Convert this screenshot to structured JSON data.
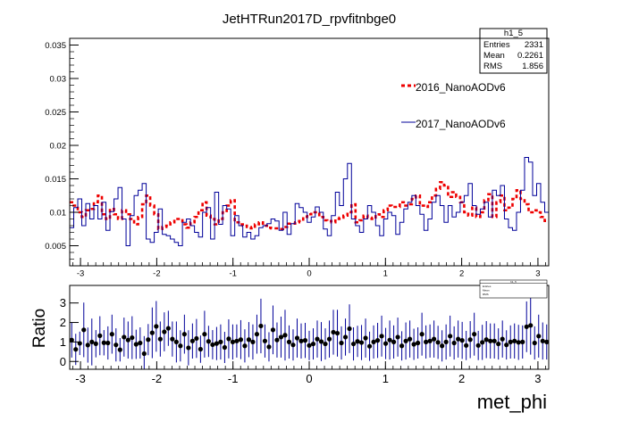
{
  "colors": {
    "series_2016": "#ee0000",
    "series_2017": "#000099",
    "ratio_err": "#000099",
    "axis": "#000000"
  },
  "chart_data": [
    {
      "type": "histogram",
      "title": "JetHTRun2017D_rpvfitnbge0",
      "xlabel": "",
      "ylabel": "",
      "xlim": [
        -3.14159,
        3.14159
      ],
      "ylim": [
        0.002,
        0.036
      ],
      "x_ticks": [
        -3,
        -2,
        -1,
        0,
        1,
        2,
        3
      ],
      "x_tick_labels": [
        "-3",
        "-2",
        "-1",
        "0",
        "1",
        "2",
        "3"
      ],
      "y_ticks": [
        0.005,
        0.01,
        0.015,
        0.02,
        0.025,
        0.03,
        0.035
      ],
      "y_tick_labels": [
        "0.005",
        "0.01",
        "0.015",
        "0.02",
        "0.025",
        "0.03",
        "0.035"
      ],
      "grid": false,
      "legend_position": "right",
      "stats_box": {
        "title": "h1_5",
        "rows": [
          {
            "label": "Entries",
            "value": "2331"
          },
          {
            "label": "Mean",
            "value": "0.2261"
          },
          {
            "label": "RMS",
            "value": "1.856"
          }
        ]
      },
      "series": [
        {
          "name": "2016_NanoAODv6",
          "style": "dashed",
          "values": [
            0.0115,
            0.011,
            0.01,
            0.0093,
            0.0103,
            0.0105,
            0.0115,
            0.0125,
            0.0097,
            0.009,
            0.0105,
            0.0097,
            0.009,
            0.0103,
            0.0097,
            0.009,
            0.0082,
            0.0093,
            0.0112,
            0.0125,
            0.011,
            0.0097,
            0.0075,
            0.0078,
            0.008,
            0.0085,
            0.009,
            0.009,
            0.0082,
            0.0077,
            0.0085,
            0.0093,
            0.0103,
            0.0115,
            0.0095,
            0.009,
            0.0082,
            0.009,
            0.01,
            0.011,
            0.0118,
            0.0085,
            0.0082,
            0.008,
            0.0078,
            0.0076,
            0.0082,
            0.0085,
            0.008,
            0.0077,
            0.0076,
            0.0076,
            0.0075,
            0.0078,
            0.0083,
            0.0083,
            0.0085,
            0.0087,
            0.0093,
            0.0097,
            0.01,
            0.01,
            0.0093,
            0.0088,
            0.0087,
            0.0085,
            0.009,
            0.0092,
            0.0095,
            0.01,
            0.0112,
            0.0085,
            0.0088,
            0.0095,
            0.0092,
            0.009,
            0.0097,
            0.0093,
            0.0103,
            0.011,
            0.0108,
            0.0108,
            0.0115,
            0.011,
            0.0112,
            0.012,
            0.0125,
            0.011,
            0.0108,
            0.0115,
            0.0125,
            0.0135,
            0.0145,
            0.014,
            0.0123,
            0.013,
            0.0123,
            0.0115,
            0.01,
            0.0095,
            0.0107,
            0.0093,
            0.01,
            0.0118,
            0.0127,
            0.0093,
            0.0115,
            0.0125,
            0.0103,
            0.0107,
            0.012,
            0.0133,
            0.012,
            0.0112,
            0.01,
            0.0103,
            0.01,
            0.0093,
            0.0087
          ]
        },
        {
          "name": "2017_NanoAODv6",
          "style": "solid",
          "values": [
            0.0077,
            0.0107,
            0.012,
            0.008,
            0.0113,
            0.009,
            0.011,
            0.009,
            0.0115,
            0.0073,
            0.0101,
            0.012,
            0.0137,
            0.009,
            0.005,
            0.0095,
            0.0125,
            0.0133,
            0.0143,
            0.006,
            0.0055,
            0.007,
            0.0105,
            0.0067,
            0.0065,
            0.006,
            0.0055,
            0.005,
            0.0085,
            0.009,
            0.008,
            0.007,
            0.0063,
            0.01,
            0.0107,
            0.006,
            0.013,
            0.0082,
            0.011,
            0.0105,
            0.0065,
            0.0095,
            0.008,
            0.0063,
            0.007,
            0.006,
            0.0065,
            0.0077,
            0.008,
            0.0083,
            0.009,
            0.0087,
            0.0073,
            0.01,
            0.0067,
            0.0083,
            0.0113,
            0.0107,
            0.01,
            0.0085,
            0.0093,
            0.0108,
            0.01,
            0.0075,
            0.0065,
            0.0095,
            0.013,
            0.011,
            0.015,
            0.0173,
            0.009,
            0.008,
            0.007,
            0.009,
            0.011,
            0.01,
            0.008,
            0.0065,
            0.009,
            0.01,
            0.0095,
            0.0067,
            0.0085,
            0.0105,
            0.0115,
            0.0125,
            0.011,
            0.0097,
            0.0073,
            0.009,
            0.0115,
            0.0125,
            0.011,
            0.0085,
            0.011,
            0.0093,
            0.01,
            0.0115,
            0.0125,
            0.0143,
            0.011,
            0.0097,
            0.0105,
            0.0115,
            0.0093,
            0.0133,
            0.0125,
            0.014,
            0.009,
            0.0077,
            0.0073,
            0.01,
            0.0133,
            0.0182,
            0.0175,
            0.0125,
            0.0143,
            0.0115,
            0.01
          ]
        }
      ]
    },
    {
      "type": "scatter",
      "title": "",
      "xlabel": "met_phi",
      "ylabel": "Ratio",
      "xlim": [
        -3.14159,
        3.14159
      ],
      "ylim": [
        -0.4,
        3.9
      ],
      "x_ticks": [
        -3,
        -2,
        -1,
        0,
        1,
        2,
        3
      ],
      "x_tick_labels": [
        "-3",
        "-2",
        "-1",
        "0",
        "1",
        "2",
        "3"
      ],
      "y_ticks": [
        0,
        1,
        2,
        3
      ],
      "y_tick_labels": [
        "0",
        "1",
        "2",
        "3"
      ],
      "grid": false,
      "stats_box": {
        "title": "h1_5",
        "rows": [
          {
            "label": "Entries",
            "value": ""
          },
          {
            "label": "Mean",
            "value": ""
          },
          {
            "label": "RMS",
            "value": ""
          }
        ]
      },
      "ratio": [
        1.1,
        0.62,
        0.93,
        1.62,
        0.84,
        1.0,
        0.91,
        1.32,
        0.96,
        0.95,
        1.4,
        0.85,
        0.6,
        1.25,
        1.1,
        1.22,
        0.88,
        0.95,
        0.4,
        1.12,
        1.47,
        1.8,
        1.15,
        1.52,
        1.7,
        1.15,
        1.0,
        0.8,
        1.4,
        0.7,
        1.05,
        1.18,
        0.63,
        1.4,
        1.03,
        0.86,
        0.92,
        1.0,
        0.72,
        1.16,
        1.0,
        1.05,
        1.12,
        0.8,
        1.12,
        1.0,
        1.4,
        1.82,
        1.05,
        0.75,
        1.62,
        1.1,
        1.25,
        1.35,
        1.0,
        0.85,
        1.2,
        1.05,
        1.08,
        0.82,
        0.9,
        1.15,
        1.02,
        0.9,
        1.15,
        1.5,
        1.45,
        0.95,
        1.25,
        1.68,
        0.9,
        1.03,
        0.97,
        1.2,
        0.78,
        1.0,
        1.08,
        1.3,
        0.92,
        1.1,
        1.0,
        1.25,
        0.8,
        1.05,
        1.15,
        0.88,
        0.95,
        1.4,
        1.0,
        1.05,
        1.15,
        0.98,
        0.8,
        1.0,
        1.3,
        0.95,
        1.15,
        1.08,
        0.82,
        1.12,
        1.4,
        0.82,
        0.98,
        1.12,
        1.05,
        1.05,
        0.9,
        1.15,
        0.85,
        1.0,
        1.05,
        0.98,
        1.0,
        1.78,
        1.85,
        0.95,
        1.3,
        1.05,
        1.0
      ],
      "error": [
        0.9,
        0.8,
        0.6,
        1.4,
        0.9,
        1.2,
        0.7,
        1.0,
        0.65,
        0.85,
        1.0,
        0.85,
        0.6,
        1.0,
        0.95,
        1.1,
        0.75,
        0.8,
        0.9,
        0.8,
        1.3,
        1.3,
        0.9,
        1.0,
        0.9,
        0.9,
        1.05,
        0.8,
        1.0,
        0.9,
        0.9,
        1.0,
        0.7,
        1.2,
        0.8,
        0.75,
        0.85,
        0.9,
        0.8,
        1.0,
        0.9,
        0.85,
        1.0,
        0.85,
        0.9,
        0.9,
        1.0,
        1.4,
        0.85,
        0.75,
        1.25,
        0.9,
        1.05,
        1.3,
        0.85,
        0.8,
        1.0,
        0.9,
        0.9,
        0.75,
        0.8,
        0.95,
        1.0,
        0.8,
        0.95,
        1.15,
        1.2,
        0.85,
        0.95,
        1.25,
        0.85,
        0.8,
        0.9,
        1.0,
        0.75,
        0.85,
        0.9,
        1.05,
        0.8,
        1.0,
        0.85,
        1.0,
        0.75,
        0.95,
        0.95,
        0.8,
        0.8,
        1.1,
        0.85,
        0.85,
        0.95,
        0.85,
        0.8,
        0.9,
        1.05,
        0.85,
        0.95,
        0.95,
        0.75,
        0.95,
        1.1,
        0.75,
        0.9,
        0.95,
        0.9,
        0.9,
        0.8,
        0.95,
        0.75,
        0.85,
        0.9,
        0.9,
        0.85,
        1.3,
        1.5,
        0.85,
        1.1,
        0.95,
        0.9
      ]
    }
  ]
}
